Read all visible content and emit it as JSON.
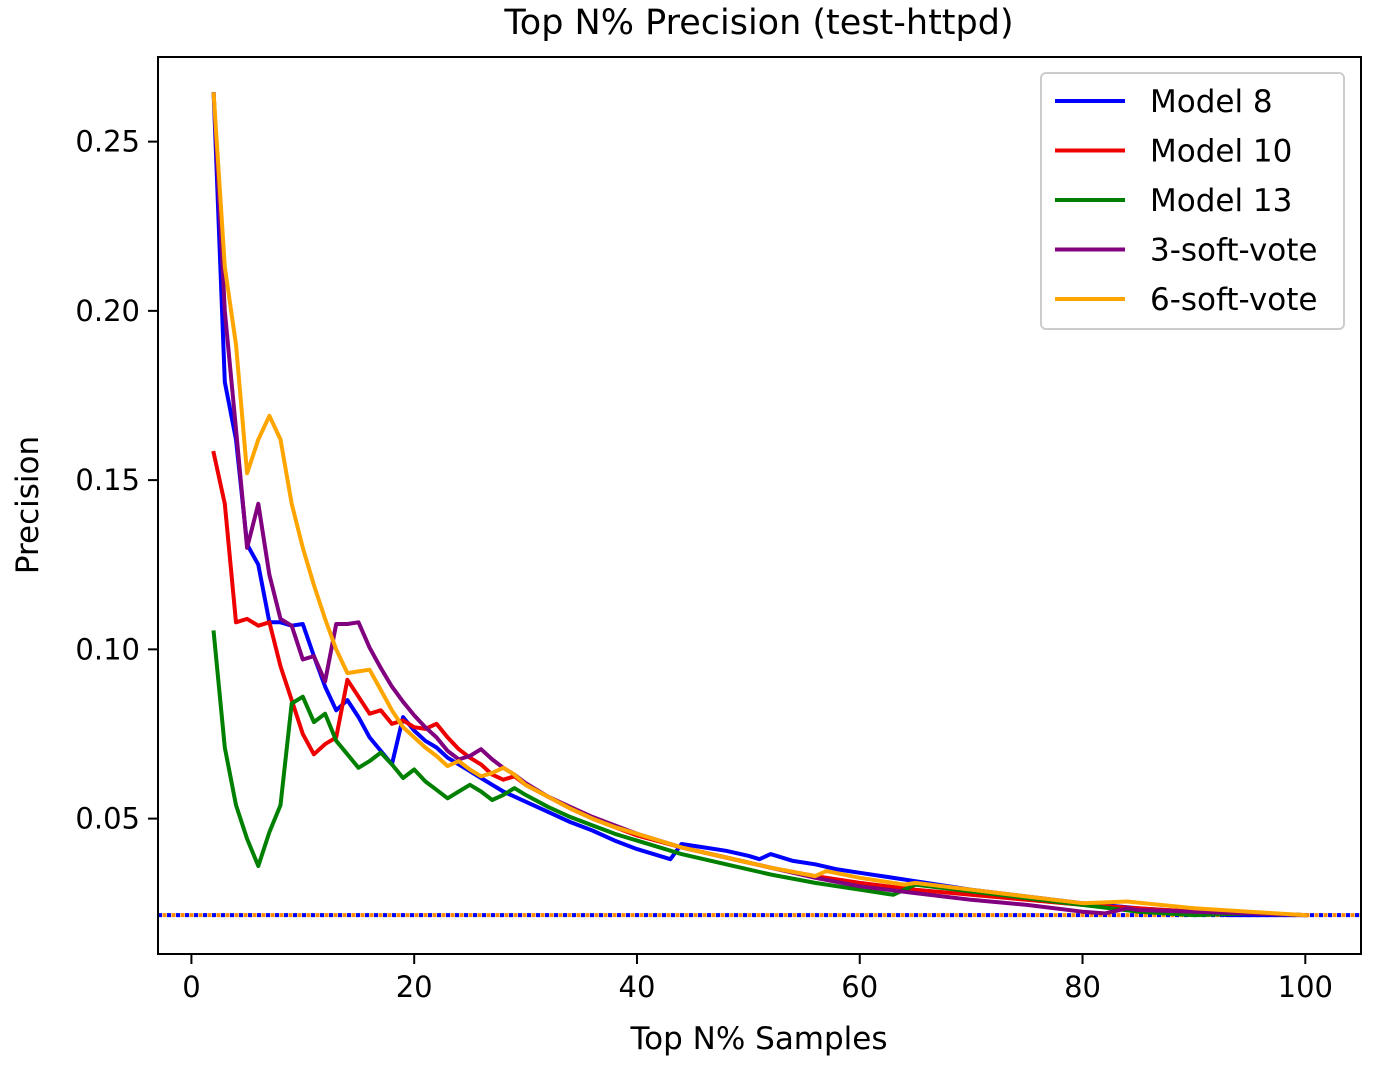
{
  "chart_data": {
    "type": "line",
    "title": "Top N% Precision (test-httpd)",
    "xlabel": "Top N% Samples",
    "ylabel": "Precision",
    "xlim": [
      -3,
      105
    ],
    "ylim": [
      0.01,
      0.275
    ],
    "xticks": [
      0,
      20,
      40,
      60,
      80,
      100
    ],
    "yticks": [
      0.05,
      0.1,
      0.15,
      0.2,
      0.25
    ],
    "xtick_labels": [
      "0",
      "20",
      "40",
      "60",
      "80",
      "100"
    ],
    "ytick_labels": [
      "0.05",
      "0.10",
      "0.15",
      "0.20",
      "0.25"
    ],
    "grid": false,
    "legend_position": "top-right",
    "baseline": {
      "y": 0.0215,
      "style": "dotted",
      "colors": [
        "#0000ff",
        "#ff8c00"
      ]
    },
    "series": [
      {
        "name": "Model 8",
        "color": "#0000ff",
        "x": [
          2,
          3,
          4,
          5,
          6,
          7,
          8,
          9,
          10,
          11,
          12,
          13,
          14,
          15,
          16,
          17,
          18,
          19,
          20,
          21,
          22,
          23,
          24,
          25,
          26,
          27,
          28,
          29,
          30,
          32,
          34,
          36,
          38,
          40,
          42,
          43,
          44,
          46,
          48,
          50,
          51,
          52,
          54,
          56,
          58,
          60,
          62,
          65,
          70,
          75,
          80,
          85,
          90,
          93,
          95,
          100
        ],
        "values": [
          0.264,
          0.179,
          0.162,
          0.131,
          0.125,
          0.108,
          0.108,
          0.107,
          0.1075,
          0.098,
          0.089,
          0.082,
          0.085,
          0.08,
          0.074,
          0.07,
          0.066,
          0.08,
          0.076,
          0.073,
          0.071,
          0.068,
          0.066,
          0.064,
          0.062,
          0.06,
          0.058,
          0.0565,
          0.055,
          0.052,
          0.049,
          0.0465,
          0.0435,
          0.041,
          0.039,
          0.038,
          0.0425,
          0.0415,
          0.0405,
          0.039,
          0.038,
          0.0395,
          0.0375,
          0.0365,
          0.035,
          0.034,
          0.033,
          0.0315,
          0.029,
          0.027,
          0.025,
          0.0235,
          0.0225,
          0.0215,
          0.0215,
          0.0215
        ]
      },
      {
        "name": "Model 10",
        "color": "#ee0000",
        "x": [
          2,
          3,
          4,
          5,
          6,
          7,
          8,
          9,
          10,
          11,
          12,
          13,
          14,
          15,
          16,
          17,
          18,
          19,
          20,
          21,
          22,
          23,
          24,
          25,
          26,
          27,
          28,
          29,
          30,
          32,
          34,
          36,
          38,
          40,
          44,
          48,
          52,
          56,
          60,
          65,
          70,
          75,
          80,
          85,
          90,
          95,
          100
        ],
        "values": [
          0.158,
          0.143,
          0.108,
          0.109,
          0.107,
          0.108,
          0.095,
          0.085,
          0.075,
          0.069,
          0.072,
          0.074,
          0.091,
          0.086,
          0.081,
          0.082,
          0.078,
          0.079,
          0.077,
          0.0765,
          0.078,
          0.074,
          0.0705,
          0.068,
          0.066,
          0.063,
          0.0615,
          0.0625,
          0.06,
          0.0565,
          0.053,
          0.05,
          0.0475,
          0.045,
          0.0415,
          0.0385,
          0.0355,
          0.033,
          0.031,
          0.029,
          0.0275,
          0.026,
          0.0245,
          0.0235,
          0.0225,
          0.022,
          0.0215
        ]
      },
      {
        "name": "Model 13",
        "color": "#008000",
        "x": [
          2,
          3,
          4,
          5,
          6,
          7,
          8,
          9,
          10,
          11,
          12,
          13,
          14,
          15,
          16,
          17,
          18,
          19,
          20,
          21,
          22,
          23,
          24,
          25,
          26,
          27,
          28,
          29,
          30,
          32,
          34,
          36,
          38,
          40,
          44,
          48,
          52,
          56,
          60,
          63,
          65,
          70,
          75,
          80,
          85,
          90,
          95,
          100
        ],
        "values": [
          0.105,
          0.071,
          0.054,
          0.044,
          0.036,
          0.046,
          0.054,
          0.084,
          0.086,
          0.0785,
          0.081,
          0.073,
          0.069,
          0.065,
          0.067,
          0.0695,
          0.066,
          0.062,
          0.0645,
          0.061,
          0.0585,
          0.056,
          0.058,
          0.06,
          0.058,
          0.0555,
          0.057,
          0.059,
          0.057,
          0.0535,
          0.0505,
          0.048,
          0.0455,
          0.0435,
          0.0395,
          0.0365,
          0.0335,
          0.031,
          0.029,
          0.0275,
          0.0305,
          0.0285,
          0.0265,
          0.0245,
          0.0225,
          0.0215,
          0.022,
          0.0215
        ]
      },
      {
        "name": "3-soft-vote",
        "color": "#800080",
        "x": [
          2,
          3,
          4,
          5,
          6,
          7,
          8,
          9,
          10,
          11,
          12,
          13,
          14,
          15,
          16,
          17,
          18,
          19,
          20,
          21,
          22,
          23,
          24,
          25,
          26,
          27,
          28,
          29,
          30,
          32,
          34,
          36,
          38,
          40,
          44,
          48,
          52,
          56,
          60,
          65,
          70,
          75,
          80,
          82,
          84,
          85,
          90,
          95,
          100
        ],
        "values": [
          0.264,
          0.2,
          0.165,
          0.13,
          0.143,
          0.122,
          0.109,
          0.107,
          0.097,
          0.098,
          0.0905,
          0.1075,
          0.1075,
          0.108,
          0.1005,
          0.0945,
          0.089,
          0.0845,
          0.0805,
          0.077,
          0.074,
          0.07,
          0.0675,
          0.0685,
          0.0705,
          0.0675,
          0.065,
          0.063,
          0.0605,
          0.0565,
          0.0535,
          0.0505,
          0.048,
          0.0455,
          0.0415,
          0.0385,
          0.0355,
          0.0325,
          0.03,
          0.028,
          0.026,
          0.0245,
          0.0225,
          0.022,
          0.0235,
          0.023,
          0.0225,
          0.022,
          0.0215
        ]
      },
      {
        "name": "6-soft-vote",
        "color": "#ffa500",
        "x": [
          2,
          3,
          4,
          5,
          6,
          7,
          8,
          9,
          10,
          11,
          12,
          13,
          14,
          15,
          16,
          17,
          18,
          19,
          20,
          21,
          22,
          23,
          24,
          25,
          26,
          27,
          28,
          29,
          30,
          32,
          34,
          36,
          38,
          40,
          44,
          48,
          52,
          56,
          57,
          60,
          64,
          65,
          70,
          75,
          80,
          84,
          90,
          95,
          100
        ],
        "values": [
          0.264,
          0.213,
          0.19,
          0.152,
          0.162,
          0.169,
          0.162,
          0.143,
          0.13,
          0.119,
          0.109,
          0.1,
          0.093,
          0.0935,
          0.094,
          0.088,
          0.082,
          0.077,
          0.074,
          0.071,
          0.0685,
          0.0655,
          0.067,
          0.0645,
          0.0625,
          0.0635,
          0.065,
          0.063,
          0.06,
          0.0565,
          0.053,
          0.05,
          0.0475,
          0.0455,
          0.0415,
          0.0385,
          0.0355,
          0.033,
          0.0345,
          0.0325,
          0.0305,
          0.031,
          0.029,
          0.027,
          0.025,
          0.0255,
          0.0235,
          0.0225,
          0.0215
        ]
      }
    ]
  }
}
